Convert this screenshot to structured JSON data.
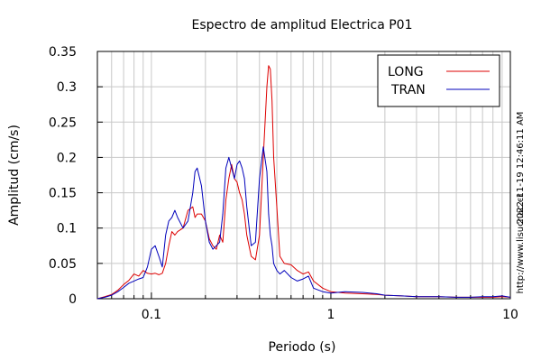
{
  "chart_data": {
    "type": "line",
    "title": "Espectro de amplitud Electrica P01",
    "xlabel": "Periodo (s)",
    "ylabel": "Amplitud (cm/s)",
    "xscale": "log",
    "xlim": [
      0.05,
      10
    ],
    "ylim": [
      0,
      0.35
    ],
    "grid": true,
    "legend_position": "top-right",
    "x_tick_labels": [
      "0.1",
      "1",
      "10"
    ],
    "y_tick_labels": [
      "0",
      "0.05",
      "0.1",
      "0.15",
      "0.2",
      "0.25",
      "0.3",
      "0.35"
    ],
    "series": [
      {
        "name": "LONG",
        "color": "#dd0000",
        "x": [
          0.05,
          0.055,
          0.06,
          0.065,
          0.07,
          0.075,
          0.08,
          0.085,
          0.09,
          0.095,
          0.1,
          0.105,
          0.11,
          0.115,
          0.12,
          0.125,
          0.13,
          0.135,
          0.14,
          0.15,
          0.16,
          0.17,
          0.175,
          0.18,
          0.19,
          0.2,
          0.21,
          0.22,
          0.23,
          0.24,
          0.25,
          0.26,
          0.27,
          0.28,
          0.29,
          0.3,
          0.31,
          0.32,
          0.33,
          0.34,
          0.36,
          0.38,
          0.4,
          0.42,
          0.44,
          0.45,
          0.46,
          0.47,
          0.48,
          0.5,
          0.52,
          0.55,
          0.6,
          0.65,
          0.7,
          0.75,
          0.8,
          0.9,
          1.0,
          1.2,
          1.5,
          1.8,
          2.0,
          2.5,
          3.0,
          4.0,
          5.0,
          6.0,
          7.0,
          8.0,
          9.0,
          10.0
        ],
        "values": [
          0.0,
          0.003,
          0.006,
          0.012,
          0.02,
          0.026,
          0.035,
          0.032,
          0.04,
          0.036,
          0.035,
          0.036,
          0.034,
          0.036,
          0.05,
          0.075,
          0.095,
          0.09,
          0.095,
          0.1,
          0.125,
          0.13,
          0.115,
          0.12,
          0.12,
          0.11,
          0.085,
          0.075,
          0.07,
          0.09,
          0.08,
          0.14,
          0.17,
          0.19,
          0.17,
          0.165,
          0.15,
          0.14,
          0.12,
          0.09,
          0.06,
          0.055,
          0.09,
          0.2,
          0.3,
          0.33,
          0.325,
          0.28,
          0.2,
          0.13,
          0.06,
          0.05,
          0.048,
          0.04,
          0.035,
          0.038,
          0.025,
          0.015,
          0.01,
          0.008,
          0.007,
          0.006,
          0.005,
          0.004,
          0.003,
          0.003,
          0.002,
          0.002,
          0.002,
          0.002,
          0.003,
          0.002
        ]
      },
      {
        "name": "TRAN",
        "color": "#0000bb",
        "x": [
          0.05,
          0.055,
          0.06,
          0.065,
          0.07,
          0.075,
          0.08,
          0.085,
          0.09,
          0.095,
          0.1,
          0.105,
          0.11,
          0.115,
          0.12,
          0.125,
          0.13,
          0.135,
          0.14,
          0.15,
          0.16,
          0.17,
          0.175,
          0.18,
          0.19,
          0.2,
          0.21,
          0.22,
          0.23,
          0.24,
          0.25,
          0.26,
          0.27,
          0.28,
          0.29,
          0.3,
          0.31,
          0.32,
          0.33,
          0.34,
          0.36,
          0.38,
          0.4,
          0.42,
          0.44,
          0.45,
          0.46,
          0.47,
          0.48,
          0.5,
          0.52,
          0.55,
          0.6,
          0.65,
          0.7,
          0.75,
          0.8,
          0.9,
          1.0,
          1.2,
          1.5,
          1.8,
          2.0,
          2.5,
          3.0,
          4.0,
          5.0,
          6.0,
          7.0,
          8.0,
          9.0,
          10.0
        ],
        "values": [
          0.0,
          0.002,
          0.005,
          0.01,
          0.016,
          0.022,
          0.025,
          0.028,
          0.03,
          0.045,
          0.07,
          0.075,
          0.06,
          0.045,
          0.09,
          0.11,
          0.115,
          0.125,
          0.115,
          0.1,
          0.11,
          0.15,
          0.18,
          0.185,
          0.16,
          0.11,
          0.08,
          0.07,
          0.075,
          0.08,
          0.12,
          0.185,
          0.2,
          0.185,
          0.17,
          0.19,
          0.195,
          0.185,
          0.17,
          0.13,
          0.075,
          0.08,
          0.17,
          0.215,
          0.18,
          0.12,
          0.09,
          0.075,
          0.05,
          0.04,
          0.035,
          0.04,
          0.03,
          0.025,
          0.028,
          0.032,
          0.015,
          0.01,
          0.008,
          0.01,
          0.009,
          0.007,
          0.005,
          0.004,
          0.003,
          0.003,
          0.002,
          0.002,
          0.003,
          0.003,
          0.004,
          0.002
        ]
      }
    ]
  },
  "side_texts": {
    "timestamp": "2022-11-19 12:46:11 AM",
    "url": "http://www.lisucr.ac.cr"
  }
}
